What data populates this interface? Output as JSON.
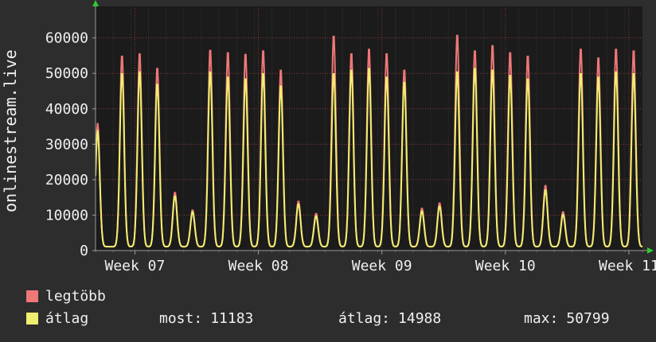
{
  "chart_data": {
    "type": "line",
    "title": "onlinestream.live",
    "ylabel": "onlinestream.live",
    "ylim": [
      0,
      68000
    ],
    "yticks": [
      0,
      10000,
      20000,
      30000,
      40000,
      50000,
      60000
    ],
    "x_tick_labels": [
      "Week 07",
      "Week 08",
      "Week 09",
      "Week 10",
      "Week 11"
    ],
    "week_tick_day_offset": 2.23,
    "days": 31,
    "baseline": 1100,
    "grid": true,
    "legend_position": "bottom",
    "series": [
      {
        "name": "legtöbb",
        "color": "#ee7777",
        "day_peaks": [
          36000,
          55500,
          56200,
          52000,
          16500,
          11500,
          57200,
          56500,
          56000,
          57000,
          51500,
          14000,
          10500,
          61200,
          56200,
          57500,
          56200,
          51500,
          12000,
          13500,
          61500,
          57000,
          58500,
          56500,
          55500,
          18500,
          11000,
          57500,
          55000,
          57500,
          57000
        ]
      },
      {
        "name": "átlag",
        "color": "#efef6f",
        "day_peaks": [
          34000,
          50500,
          51000,
          47500,
          15500,
          11000,
          51000,
          49500,
          49000,
          50500,
          47000,
          13200,
          9800,
          50500,
          51500,
          52000,
          49500,
          48000,
          11200,
          12600,
          51000,
          52000,
          51500,
          50000,
          49000,
          17200,
          10200,
          50500,
          49500,
          51000,
          50500
        ]
      }
    ],
    "stats": [
      {
        "label": "most:",
        "value": "11183"
      },
      {
        "label": "átlag:",
        "value": "14988"
      },
      {
        "label": "max:",
        "value": "50799"
      }
    ],
    "colors": {
      "plot_bg": "#1b1b1b",
      "page_bg": "#2d2d2d",
      "grid_major": "#8a3a3a",
      "axis": "#9a9a9a",
      "arrow": "#2ecc2e",
      "text": "#f0f0f0"
    }
  }
}
